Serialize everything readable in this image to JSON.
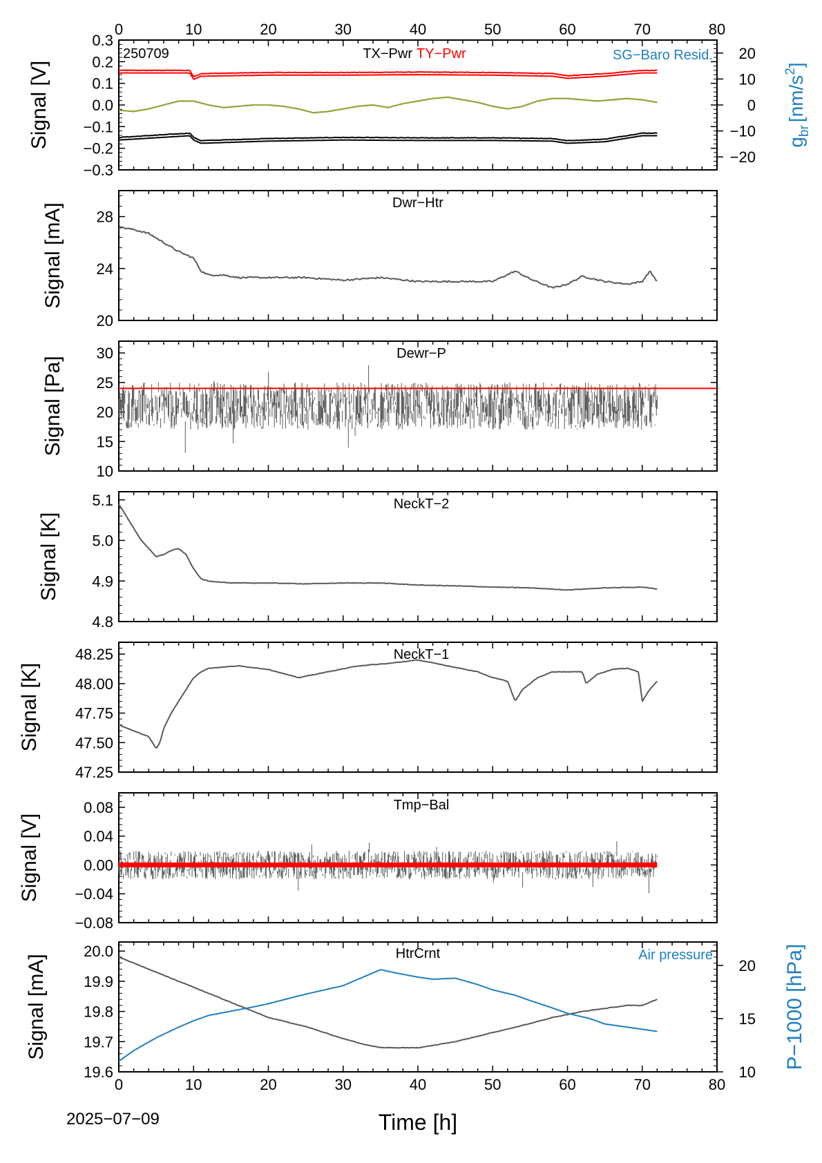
{
  "figure": {
    "date_label": "2025−07−09",
    "x_axis_label": "Time [h]"
  },
  "colors": {
    "gray": "#595959",
    "red": "#ff0000",
    "blue": "#1f7fbf",
    "olive": "#9aa52a",
    "black": "#000000"
  },
  "chart_data": [
    {
      "type": "line",
      "id": "p1",
      "title": "TX−Pwr",
      "title2": "TY−Pwr",
      "corner_label": "250709",
      "right_label": "SG−Baro Resid.",
      "ylabel": "Signal [V]",
      "ylabel_right": "g",
      "ylabel_right_sub": "br",
      "ylabel_right_unit": "[nm/s",
      "ylabel_right_sup": "2",
      "ylabel_right_close": "]",
      "xlim": [
        0,
        80
      ],
      "ylim": [
        -0.3,
        0.3
      ],
      "ylim_right": [
        -25,
        25
      ],
      "y_ticks": [
        "0.3",
        "0.2",
        "0.1",
        "0.0",
        "−0.1",
        "−0.2",
        "−0.3"
      ],
      "y_ticks_right": [
        "20",
        "10",
        "0",
        "−10",
        "−20"
      ],
      "x_ticks_top": [
        "0",
        "10",
        "20",
        "30",
        "40",
        "50",
        "60",
        "70",
        "80"
      ],
      "series": [
        {
          "name": "TY−Pwr",
          "color": "#ff0000",
          "x": [
            0,
            9.5,
            10,
            11,
            20,
            30,
            40,
            50,
            58,
            60,
            65,
            70,
            72
          ],
          "y": [
            0.16,
            0.16,
            0.13,
            0.145,
            0.15,
            0.15,
            0.152,
            0.15,
            0.145,
            0.135,
            0.145,
            0.16,
            0.16
          ]
        },
        {
          "name": "TX−Pwr",
          "color": "#000000",
          "x": [
            0,
            9.5,
            10,
            11,
            20,
            30,
            40,
            50,
            58,
            60,
            65,
            70,
            72
          ],
          "y": [
            -0.15,
            -0.13,
            -0.15,
            -0.165,
            -0.155,
            -0.15,
            -0.152,
            -0.152,
            -0.155,
            -0.165,
            -0.158,
            -0.13,
            -0.13
          ]
        },
        {
          "name": "SG−Baro Resid.",
          "color": "#1f7fbf",
          "x": [
            0,
            2,
            4,
            6,
            8,
            10,
            12,
            14,
            16,
            18,
            20,
            22,
            24,
            26,
            28,
            30,
            32,
            34,
            36,
            38,
            40,
            42,
            44,
            46,
            48,
            50,
            52,
            54,
            56,
            58,
            60,
            62,
            64,
            66,
            68,
            70,
            72
          ],
          "y": [
            -2,
            -2.5,
            -1.5,
            0,
            1.5,
            1.5,
            0,
            -1,
            -0.5,
            0,
            0,
            -0.5,
            -1.5,
            -3,
            -2.5,
            -1.5,
            -0.5,
            0,
            -1,
            0.5,
            1.5,
            2.5,
            3,
            2,
            1,
            -0.5,
            -1.5,
            -0.5,
            1.5,
            2.5,
            2.5,
            2,
            1.5,
            2,
            2.5,
            2,
            1
          ]
        },
        {
          "name": "SG−Baro Resid. (model)",
          "color": "#9aa52a",
          "x": [
            0,
            2,
            4,
            6,
            8,
            10,
            12,
            14,
            16,
            18,
            20,
            22,
            24,
            26,
            28,
            30,
            32,
            34,
            36,
            38,
            40,
            42,
            44,
            46,
            48,
            50,
            52,
            54,
            56,
            58,
            60,
            62,
            64,
            66,
            68,
            70,
            72
          ],
          "y": [
            -2,
            -2.5,
            -1.5,
            0,
            1.5,
            1.5,
            0,
            -1,
            -0.5,
            0,
            0,
            -0.5,
            -1.5,
            -3,
            -2.5,
            -1.5,
            -0.5,
            0,
            -1,
            0.5,
            1.5,
            2.5,
            3,
            2,
            1,
            -0.5,
            -1.5,
            -0.5,
            1.5,
            2.5,
            2.5,
            2,
            1.5,
            2,
            2.5,
            2,
            1
          ]
        }
      ]
    },
    {
      "type": "line",
      "id": "p2",
      "title": "Dwr−Htr",
      "ylabel": "Signal [mA]",
      "xlim": [
        0,
        80
      ],
      "ylim": [
        20,
        30
      ],
      "y_ticks": [
        "28",
        "24",
        "20"
      ],
      "series": [
        {
          "color": "#595959",
          "x": [
            0,
            2,
            4,
            6,
            8,
            10,
            11,
            12,
            14,
            16,
            20,
            25,
            30,
            35,
            40,
            45,
            50,
            53,
            55,
            58,
            60,
            62,
            65,
            68,
            70,
            71,
            72
          ],
          "y": [
            27.2,
            27,
            26.7,
            26,
            25.3,
            24.8,
            23.8,
            23.5,
            23.5,
            23.3,
            23.3,
            23.3,
            23.1,
            23.3,
            23,
            23,
            23,
            23.8,
            23.2,
            22.5,
            22.8,
            23.4,
            23,
            22.8,
            23,
            23.8,
            23
          ]
        }
      ]
    },
    {
      "type": "line",
      "id": "p3",
      "title": "Dewr−P",
      "ylabel": "Signal [Pa]",
      "xlim": [
        0,
        80
      ],
      "ylim": [
        10,
        32
      ],
      "y_ticks": [
        "30",
        "25",
        "20",
        "15",
        "10"
      ],
      "threshold": 24,
      "series": [
        {
          "color": "#595959",
          "x": [
            0,
            72
          ],
          "y": [
            21,
            21
          ],
          "noise_range": [
            17,
            25
          ]
        },
        {
          "color": "#ff0000",
          "x": [
            0,
            80
          ],
          "y": [
            24,
            24
          ]
        }
      ]
    },
    {
      "type": "line",
      "id": "p4",
      "title": "NeckT−2",
      "ylabel": "Signal [K]",
      "xlim": [
        0,
        80
      ],
      "ylim": [
        4.8,
        5.12
      ],
      "y_ticks": [
        "5.1",
        "5.0",
        "4.9",
        "4.8"
      ],
      "series": [
        {
          "color": "#595959",
          "x": [
            0,
            1,
            2,
            3,
            4,
            5,
            6,
            7,
            8,
            9,
            10,
            11,
            12,
            15,
            20,
            25,
            30,
            35,
            40,
            45,
            50,
            55,
            60,
            65,
            70,
            72
          ],
          "y": [
            5.09,
            5.06,
            5.03,
            5.0,
            4.98,
            4.96,
            4.965,
            4.975,
            4.98,
            4.965,
            4.93,
            4.905,
            4.9,
            4.895,
            4.895,
            4.893,
            4.895,
            4.895,
            4.89,
            4.888,
            4.885,
            4.883,
            4.878,
            4.883,
            4.885,
            4.88
          ]
        }
      ]
    },
    {
      "type": "line",
      "id": "p5",
      "title": "NeckT−1",
      "ylabel": "Signal [K]",
      "xlim": [
        0,
        80
      ],
      "ylim": [
        47.25,
        48.35
      ],
      "y_ticks": [
        "48.25",
        "48.00",
        "47.75",
        "47.50",
        "47.25"
      ],
      "series": [
        {
          "color": "#595959",
          "x": [
            0,
            2,
            4,
            5,
            5.5,
            6,
            7,
            8,
            9,
            10,
            11,
            12,
            14,
            16,
            20,
            24,
            28,
            32,
            36,
            40,
            44,
            48,
            50,
            52,
            53,
            54,
            56,
            58,
            60,
            62,
            62.5,
            64,
            66,
            68,
            69.5,
            70,
            71,
            72
          ],
          "y": [
            47.65,
            47.6,
            47.55,
            47.45,
            47.5,
            47.62,
            47.75,
            47.85,
            47.95,
            48.05,
            48.1,
            48.13,
            48.14,
            48.15,
            48.12,
            48.05,
            48.1,
            48.15,
            48.17,
            48.2,
            48.15,
            48.1,
            48.05,
            48.02,
            47.85,
            47.95,
            48.05,
            48.1,
            48.1,
            48.1,
            48.0,
            48.08,
            48.12,
            48.13,
            48.1,
            47.85,
            47.95,
            48.02
          ]
        }
      ]
    },
    {
      "type": "line",
      "id": "p6",
      "title": "Tmp−Bal",
      "ylabel": "Signal [V]",
      "xlim": [
        0,
        80
      ],
      "ylim": [
        -0.08,
        0.1
      ],
      "y_ticks": [
        "0.08",
        "0.04",
        "0.00",
        "−0.04",
        "−0.08"
      ],
      "series": [
        {
          "color": "#595959",
          "x": [
            0,
            72
          ],
          "y": [
            0,
            0
          ],
          "noise_range": [
            -0.02,
            0.02
          ]
        },
        {
          "color": "#ff0000",
          "x": [
            0,
            72
          ],
          "y": [
            0,
            0
          ]
        }
      ]
    },
    {
      "type": "line",
      "id": "p7",
      "title": "HtrCrnt",
      "right_label": "Air pressure",
      "ylabel": "Signal [mA]",
      "ylabel_right": "P−1000 [hPa]",
      "xlim": [
        0,
        80
      ],
      "ylim": [
        19.6,
        20.03
      ],
      "ylim_right": [
        10,
        22.2
      ],
      "y_ticks": [
        "20.0",
        "19.9",
        "19.8",
        "19.7",
        "19.6"
      ],
      "y_ticks_right": [
        "20",
        "15",
        "10"
      ],
      "x_ticks": [
        "0",
        "10",
        "20",
        "30",
        "40",
        "50",
        "60",
        "70",
        "80"
      ],
      "series": [
        {
          "name": "HtrCrnt",
          "color": "#595959",
          "x": [
            0,
            2,
            5,
            8,
            10,
            12,
            15,
            18,
            20,
            25,
            30,
            33,
            35,
            38,
            40,
            45,
            50,
            55,
            58,
            60,
            62,
            65,
            68,
            70,
            72
          ],
          "y": [
            19.98,
            19.96,
            19.93,
            19.9,
            19.88,
            19.86,
            19.83,
            19.8,
            19.78,
            19.75,
            19.71,
            19.69,
            19.68,
            19.68,
            19.68,
            19.7,
            19.73,
            19.76,
            19.78,
            19.79,
            19.8,
            19.81,
            19.82,
            19.82,
            19.84
          ]
        },
        {
          "name": "Air pressure",
          "color": "#1f7fbf",
          "x": [
            0,
            2,
            5,
            8,
            10,
            12,
            15,
            18,
            20,
            25,
            30,
            33,
            35,
            37,
            40,
            42,
            45,
            48,
            50,
            53,
            55,
            58,
            60,
            63,
            65,
            68,
            70,
            72
          ],
          "y": [
            11,
            12,
            13.2,
            14.2,
            14.8,
            15.3,
            15.7,
            16.1,
            16.4,
            17.3,
            18.1,
            19,
            19.6,
            19.3,
            18.9,
            18.7,
            18.8,
            18.2,
            17.7,
            17.2,
            16.7,
            16,
            15.5,
            15,
            14.5,
            14.2,
            14,
            13.8
          ]
        }
      ]
    }
  ]
}
